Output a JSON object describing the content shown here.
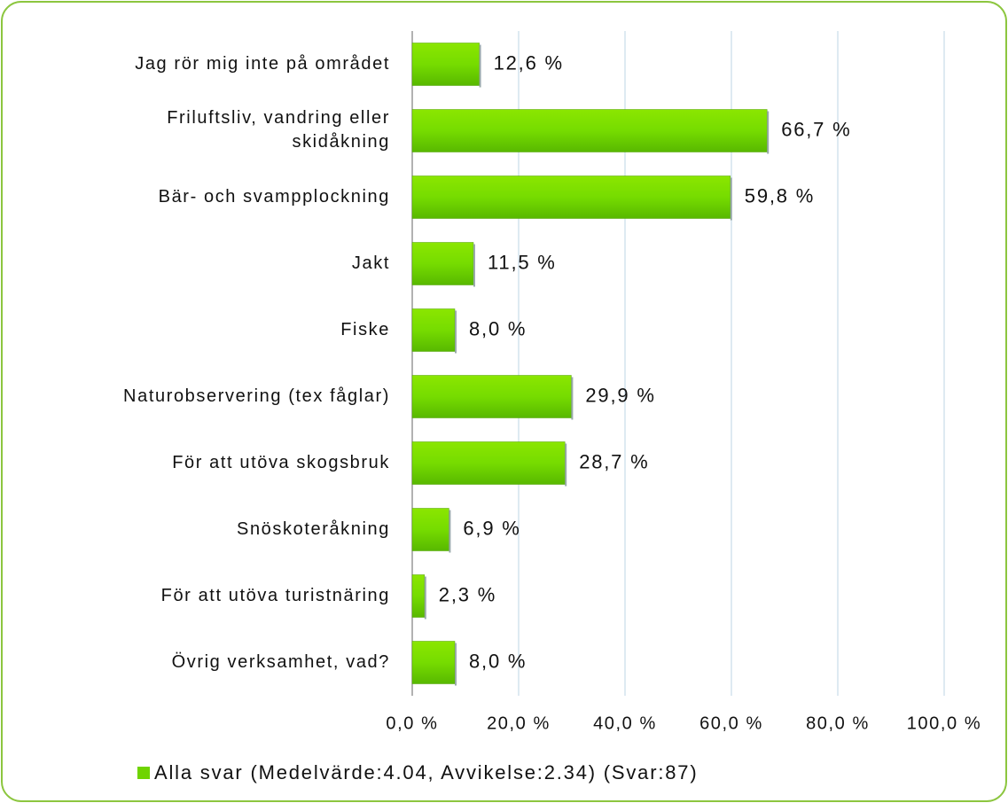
{
  "chart_data": {
    "type": "barh",
    "categories": [
      "Jag rör mig inte på området",
      "Friluftsliv, vandring eller skidåkning",
      "Bär- och svampplockning",
      "Jakt",
      "Fiske",
      "Naturobservering (tex fåglar)",
      "För att utöva skogsbruk",
      "Snöskoteråkning",
      "För att utöva turistnäring",
      "Övrig verksamhet, vad?"
    ],
    "series": [
      {
        "name": "Alla svar (Medelvärde:4.04, Avvikelse:2.34) (Svar:87)",
        "color": "#6fd400",
        "values": [
          12.6,
          66.7,
          59.8,
          11.5,
          8.0,
          29.9,
          28.7,
          6.9,
          2.3,
          8.0
        ],
        "value_labels": [
          "12,6 %",
          "66,7 %",
          "59,8 %",
          "11,5 %",
          "8,0 %",
          "29,9 %",
          "28,7 %",
          "6,9 %",
          "2,3 %",
          "8,0 %"
        ]
      }
    ],
    "xlim": [
      0,
      100
    ],
    "xticks": [
      {
        "value": 0,
        "label": "0,0 %"
      },
      {
        "value": 20,
        "label": "20,0 %"
      },
      {
        "value": 40,
        "label": "40,0 %"
      },
      {
        "value": 60,
        "label": "60,0 %"
      },
      {
        "value": 80,
        "label": "80,0 %"
      },
      {
        "value": 100,
        "label": "100,0 %"
      }
    ],
    "grid": true,
    "legend": "bottom"
  }
}
